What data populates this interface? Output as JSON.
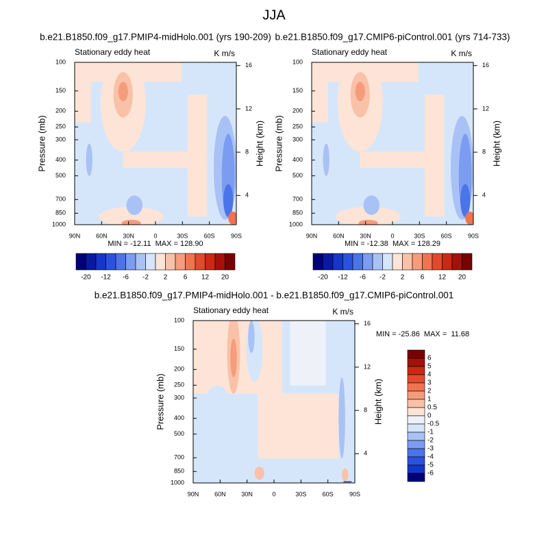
{
  "title": "JJA",
  "chart_data": [
    {
      "type": "contour",
      "title": "b.e21.B1850.f09_g17.PMIP4-midHolo.001 (yrs 190-209)",
      "left_title": "Stationary eddy heat",
      "right_title": "K m/s",
      "ylabel": "Pressure (mb)",
      "y2label": "Height (km)",
      "ylog": true,
      "xlim": [
        90,
        -90
      ],
      "xticks": [
        {
          "value": 90,
          "label": "90N"
        },
        {
          "value": 60,
          "label": "60N"
        },
        {
          "value": 30,
          "label": "30N"
        },
        0,
        {
          "value": -30,
          "label": "30S"
        },
        {
          "value": -60,
          "label": "60S"
        },
        {
          "value": -90,
          "label": "90S"
        }
      ],
      "ylim": [
        1000,
        100
      ],
      "yticks": [
        100,
        150,
        200,
        250,
        300,
        400,
        500,
        700,
        850,
        1000
      ],
      "y2lim": [
        1.3,
        16.3
      ],
      "y2ticks": [
        16,
        12,
        8,
        4
      ],
      "annotation": "MIN = -12.11  MAX = 128.90",
      "colorbar": {
        "orientation": "horizontal",
        "labels": [
          -20,
          -12,
          -6,
          -2,
          2,
          6,
          12,
          20
        ],
        "colors": [
          "#00007a",
          "#0a1aa0",
          "#1636c8",
          "#2a52de",
          "#4a74e8",
          "#7b9cf0",
          "#a9c2f5",
          "#d6e6fa",
          "#fde4d6",
          "#f9c2a8",
          "#f59c7c",
          "#f07450",
          "#e24a2c",
          "#c82a14",
          "#a3120a",
          "#7a0000"
        ]
      }
    },
    {
      "type": "contour",
      "title": "b.e21.B1850.f09_g17.CMIP6-piControl.001 (yrs 714-733)",
      "left_title": "Stationary eddy heat",
      "right_title": "K m/s",
      "ylabel": "Pressure (mb)",
      "y2label": "Height (km)",
      "ylog": true,
      "xlim": [
        90,
        -90
      ],
      "xticks": [
        {
          "value": 90,
          "label": "90N"
        },
        {
          "value": 60,
          "label": "60N"
        },
        {
          "value": 30,
          "label": "30N"
        },
        0,
        {
          "value": -30,
          "label": "30S"
        },
        {
          "value": -60,
          "label": "60S"
        },
        {
          "value": -90,
          "label": "90S"
        }
      ],
      "ylim": [
        1000,
        100
      ],
      "yticks": [
        100,
        150,
        200,
        250,
        300,
        400,
        500,
        700,
        850,
        1000
      ],
      "y2lim": [
        1.3,
        16.3
      ],
      "y2ticks": [
        16,
        12,
        8,
        4
      ],
      "annotation": "MIN = -12.38  MAX = 128.29",
      "colorbar": {
        "orientation": "horizontal",
        "labels": [
          -20,
          -12,
          -6,
          -2,
          2,
          6,
          12,
          20
        ],
        "colors": [
          "#00007a",
          "#0a1aa0",
          "#1636c8",
          "#2a52de",
          "#4a74e8",
          "#7b9cf0",
          "#a9c2f5",
          "#d6e6fa",
          "#fde4d6",
          "#f9c2a8",
          "#f59c7c",
          "#f07450",
          "#e24a2c",
          "#c82a14",
          "#a3120a",
          "#7a0000"
        ]
      }
    },
    {
      "type": "contour",
      "title": "b.e21.B1850.f09_g17.PMIP4-midHolo.001 - b.e21.B1850.f09_g17.CMIP6-piControl.001",
      "left_title": "Stationary eddy heat",
      "right_title": "K m/s",
      "ylabel": "Pressure (mb)",
      "y2label": "Height (km)",
      "ylog": true,
      "xlim": [
        90,
        -90
      ],
      "xticks": [
        {
          "value": 90,
          "label": "90N"
        },
        {
          "value": 60,
          "label": "60N"
        },
        {
          "value": 30,
          "label": "30N"
        },
        0,
        {
          "value": -30,
          "label": "30S"
        },
        {
          "value": -60,
          "label": "60S"
        },
        {
          "value": -90,
          "label": "90S"
        }
      ],
      "ylim": [
        1000,
        100
      ],
      "yticks": [
        100,
        150,
        200,
        250,
        300,
        400,
        500,
        700,
        850,
        1000
      ],
      "y2lim": [
        1.3,
        16.3
      ],
      "y2ticks": [
        16,
        12,
        8,
        4
      ],
      "annotation": "MIN = -25.86  MAX =  11.68",
      "colorbar": {
        "orientation": "vertical",
        "labels": [
          6,
          5,
          4,
          3,
          2,
          1,
          0.5,
          0,
          -0.5,
          -1,
          -2,
          -3,
          -4,
          -5,
          -6
        ],
        "colors": [
          "#7a0000",
          "#a3120a",
          "#c82a14",
          "#e24a2c",
          "#f07450",
          "#f59c7c",
          "#f9c2a8",
          "#fde4d6",
          "#eef2f8",
          "#d6e6fa",
          "#a9c2f5",
          "#7b9cf0",
          "#4a74e8",
          "#2a52de",
          "#1636c8",
          "#00007a"
        ]
      }
    }
  ]
}
